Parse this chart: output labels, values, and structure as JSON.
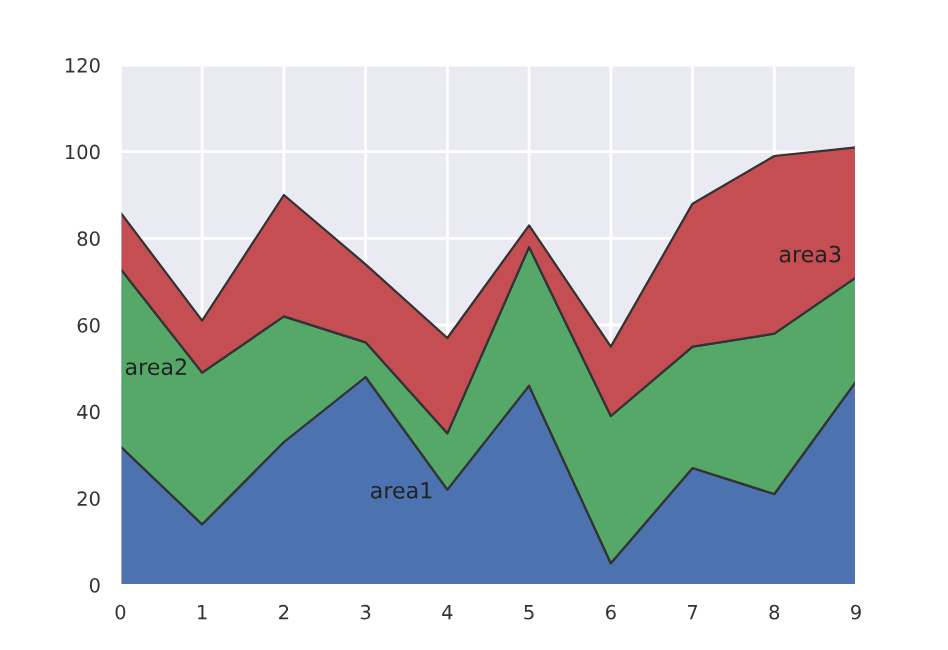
{
  "chart_data": {
    "type": "area",
    "stacked": true,
    "x": [
      0,
      1,
      2,
      3,
      4,
      5,
      6,
      7,
      8,
      9
    ],
    "series": [
      {
        "name": "area1",
        "color": "#4c72b0",
        "values": [
          32,
          14,
          33,
          48,
          22,
          46,
          5,
          27,
          21,
          47
        ]
      },
      {
        "name": "area2",
        "color": "#55a868",
        "values": [
          41,
          35,
          29,
          8,
          13,
          32,
          34,
          28,
          37,
          24
        ]
      },
      {
        "name": "area3",
        "color": "#c44e52",
        "values": [
          13,
          12,
          28,
          18,
          22,
          5,
          16,
          33,
          41,
          30
        ]
      }
    ],
    "xlim": [
      0,
      9
    ],
    "ylim": [
      0,
      120
    ],
    "xticks": [
      0,
      1,
      2,
      3,
      4,
      5,
      6,
      7,
      8,
      9
    ],
    "yticks": [
      0,
      20,
      40,
      60,
      80,
      100,
      120
    ],
    "grid": true,
    "legend": false
  }
}
